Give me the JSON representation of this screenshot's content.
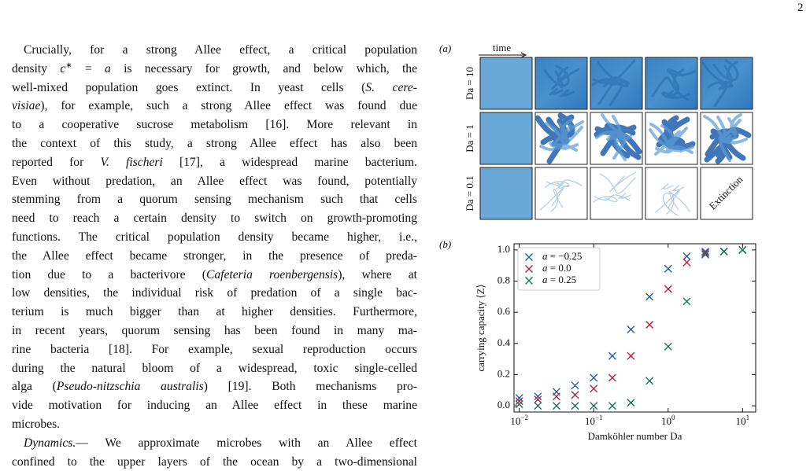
{
  "page_number": "2",
  "body": {
    "paragraphs": [
      {
        "lines": [
          [
            "Crucially, for a strong Allee effect, a critical population"
          ],
          [
            "density ",
            {
              "text": "c",
              "style": "italic"
            },
            {
              "text": "∗",
              "style": "sup"
            },
            " = ",
            {
              "text": "a",
              "style": "italic"
            },
            " is necessary for growth, and below which, the"
          ],
          [
            "well-mixed population goes extinct. In yeast cells (",
            {
              "text": "S. cere-",
              "style": "italic"
            }
          ],
          [
            {
              "text": "visiae",
              "style": "italic"
            },
            "), for example, such a strong Allee effect was found due"
          ],
          [
            "to a cooperative sucrose metabolism [16]. More relevant in"
          ],
          [
            "the context of this study, a strong Allee effect has also been"
          ],
          [
            "reported for ",
            {
              "text": "V. fischeri",
              "style": "italic"
            },
            " [17], a widespread marine bacterium."
          ],
          [
            "Even without predation, an Allee effect was found, potentially"
          ],
          [
            "stemming from a quorum sensing mechanism such that cells"
          ],
          [
            "need to reach a certain density to switch on growth-promoting"
          ],
          [
            "functions. The critical population density became higher, i.e.,"
          ],
          [
            "the Allee effect became stronger, in the presence of preda-"
          ],
          [
            "tion due to a bacterivore (",
            {
              "text": "Cafeteria roenbergensis",
              "style": "italic"
            },
            "), where at"
          ],
          [
            "low densities, the individual risk of predation of a single bac-"
          ],
          [
            "terium is much bigger than at higher densities. Furthermore,"
          ],
          [
            "in recent years, quorum sensing has been found in many ma-"
          ],
          [
            "rine bacteria [18]. For example, sexual reproduction occurs"
          ],
          [
            "during the natural bloom of a widespread, toxic single-celled"
          ],
          [
            "alga (",
            {
              "text": "Pseudo-nitzschia australis",
              "style": "italic"
            },
            ") [19]. Both mechanisms pro-"
          ],
          [
            "vide motivation for inducing an Allee effect in these marine"
          ],
          [
            "microbes."
          ]
        ]
      },
      {
        "lines": [
          [
            {
              "text": "Dynamics.",
              "style": "italic"
            },
            "— We approximate microbes with an Allee effect"
          ],
          [
            "confined to the upper layers of the ocean by a two-dimensional"
          ]
        ]
      }
    ]
  },
  "figure": {
    "panel_a": {
      "label": "(a)",
      "time_label": "time",
      "rows": [
        "Da = 10",
        "Da = 1",
        "Da = 0.1"
      ],
      "extinction_label": "Extinction"
    },
    "panel_b_label": "(b)"
  },
  "chart_data": {
    "type": "scatter",
    "xlabel": "Damköhler number Da",
    "ylabel": "carrying capacity ⟨Z⟩",
    "xscale": "log",
    "x": [
      0.01,
      0.0178,
      0.0316,
      0.0562,
      0.1,
      0.178,
      0.316,
      0.562,
      1,
      1.78,
      3.16,
      5.62,
      10
    ],
    "series": [
      {
        "name": "a = −0.25",
        "color": "#1f5fa8",
        "values": [
          0.05,
          0.06,
          0.09,
          0.13,
          0.18,
          0.32,
          0.49,
          0.7,
          0.88,
          0.96,
          0.99,
          0.99,
          1.0
        ]
      },
      {
        "name": "a = 0.0",
        "color": "#b5213c",
        "values": [
          0.03,
          0.04,
          0.06,
          0.07,
          0.11,
          0.18,
          0.32,
          0.52,
          0.75,
          0.92,
          0.98,
          0.99,
          1.0
        ]
      },
      {
        "name": "a = 0.25",
        "color": "#17735f",
        "values": [
          0.01,
          0.0,
          0.0,
          0.0,
          0.0,
          0.0,
          0.02,
          0.16,
          0.38,
          0.67,
          0.97,
          0.99,
          1.0
        ]
      }
    ],
    "xlim": [
      0.0085,
      15
    ],
    "ylim": [
      -0.04,
      1.04
    ],
    "xticks": [
      {
        "value": 0.01,
        "label": "10−2"
      },
      {
        "value": 0.1,
        "label": "10−1"
      },
      {
        "value": 1,
        "label": "100"
      },
      {
        "value": 10,
        "label": "101"
      }
    ],
    "yticks": [
      {
        "value": 0,
        "label": "0.0"
      },
      0.2,
      0.4,
      0.6,
      0.8,
      {
        "value": 1,
        "label": "1.0"
      }
    ],
    "legend": "upper left"
  }
}
